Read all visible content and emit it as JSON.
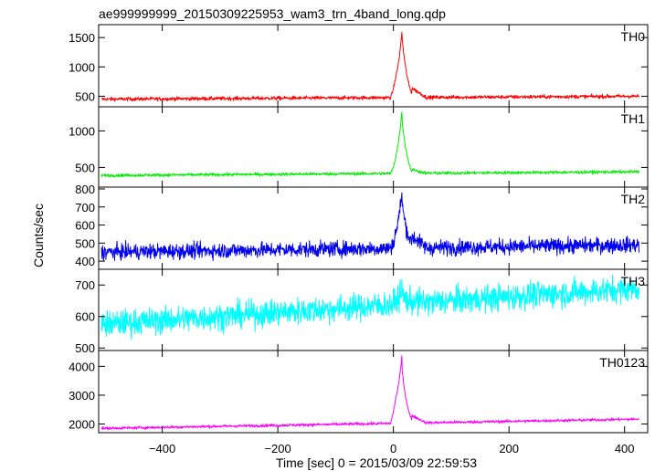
{
  "chart_data": {
    "type": "line",
    "title": "ae999999999_20150309225953_wam3_trn_4band_long.qdp",
    "xlabel": "Time [sec] 0 = 2015/03/09 22:59:53",
    "ylabel": "Counts/sec",
    "xlim": [
      -510,
      440
    ],
    "x_ticks": [
      -400,
      -200,
      0,
      200,
      400
    ],
    "x_tick_labels": [
      "−400",
      "−200",
      "0",
      "200",
      "400"
    ],
    "x_range": [
      -505,
      425
    ],
    "panels": [
      {
        "name": "TH0",
        "color": "#ff0000",
        "ylim": [
          320,
          1720
        ],
        "y_ticks": [
          500,
          1000,
          1500
        ],
        "y_tick_labels": [
          "500",
          "1000",
          "1500"
        ],
        "baseline_start": 450,
        "baseline_end": 500,
        "noise": 22,
        "peak": 1620,
        "peak2": 1500,
        "precursor": 700,
        "tail": 640
      },
      {
        "name": "TH1",
        "color": "#00ee00",
        "ylim": [
          230,
          1330
        ],
        "y_ticks": [
          500,
          1000
        ],
        "y_tick_labels": [
          "500",
          "1000"
        ],
        "baseline_start": 390,
        "baseline_end": 440,
        "noise": 15,
        "peak": 1300,
        "peak2": 1150,
        "precursor": 540,
        "tail": 470
      },
      {
        "name": "TH2",
        "color": "#0000ee",
        "ylim": [
          355,
          810
        ],
        "y_ticks": [
          400,
          500,
          600,
          700,
          800
        ],
        "y_tick_labels": [
          "400",
          "500",
          "600",
          "700",
          "800"
        ],
        "baseline_start": 450,
        "baseline_end": 490,
        "noise": 30,
        "peak": 795,
        "peak2": 720,
        "precursor": 520,
        "tail": 540
      },
      {
        "name": "TH3",
        "color": "#00ffff",
        "ylim": [
          492,
          750
        ],
        "y_ticks": [
          500,
          600,
          700
        ],
        "y_tick_labels": [
          "500",
          "600",
          "700"
        ],
        "baseline_start": 575,
        "baseline_end": 690,
        "noise": 30,
        "peak": 690,
        "peak2": 670,
        "precursor": 640,
        "tail": 650
      },
      {
        "name": "TH0123",
        "color": "#ff00ff",
        "ylim": [
          1700,
          4550
        ],
        "y_ticks": [
          2000,
          3000,
          4000
        ],
        "y_tick_labels": [
          "2000",
          "3000",
          "4000"
        ],
        "baseline_start": 1850,
        "baseline_end": 2170,
        "noise": 35,
        "peak": 4400,
        "peak2": 3900,
        "precursor": 2650,
        "tail": 2300
      }
    ],
    "burst": {
      "onset": -5,
      "peak_time": 15,
      "end": 32
    }
  }
}
